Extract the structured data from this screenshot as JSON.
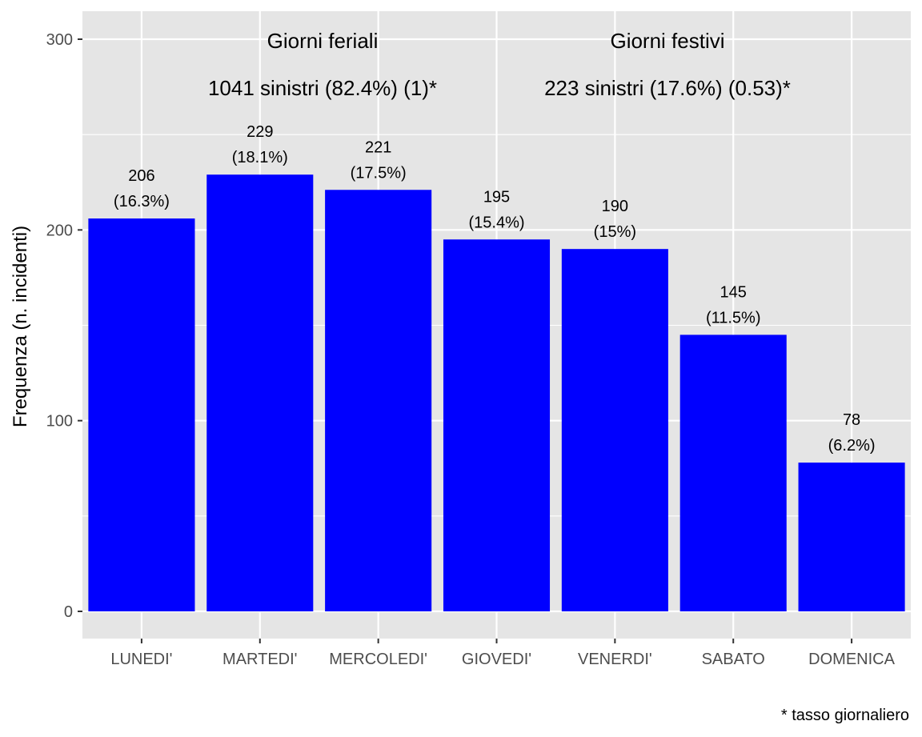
{
  "chart_data": {
    "type": "bar",
    "categories": [
      "LUNEDI'",
      "MARTEDI'",
      "MERCOLEDI'",
      "GIOVEDI'",
      "VENERDI'",
      "SABATO",
      "DOMENICA"
    ],
    "values": [
      206,
      229,
      221,
      195,
      190,
      145,
      78
    ],
    "value_labels": [
      "206",
      "229",
      "221",
      "195",
      "190",
      "145",
      "78"
    ],
    "percent_labels": [
      "(16.3%)",
      "(18.1%)",
      "(17.5%)",
      "(15.4%)",
      "(15%)",
      "(11.5%)",
      "(6.2%)"
    ],
    "ylabel": "Frequenza (n. incidenti)",
    "xlabel": "",
    "ylim": [
      -14,
      314
    ],
    "yticks": [
      0,
      100,
      200,
      300
    ],
    "ytick_labels": [
      "0",
      "100",
      "200",
      "300"
    ],
    "grid": true,
    "colors": {
      "bar": "#0000ff",
      "panel": "#e5e5e5",
      "grid": "#ffffff"
    },
    "annotations": {
      "feriali_title": "Giorni feriali",
      "feriali_summary": "1041  sinistri (82.4%) (1)*",
      "festivi_title": "Giorni festivi",
      "festivi_summary": "223  sinistri (17.6%) (0.53)*"
    },
    "caption": "* tasso giornaliero"
  }
}
